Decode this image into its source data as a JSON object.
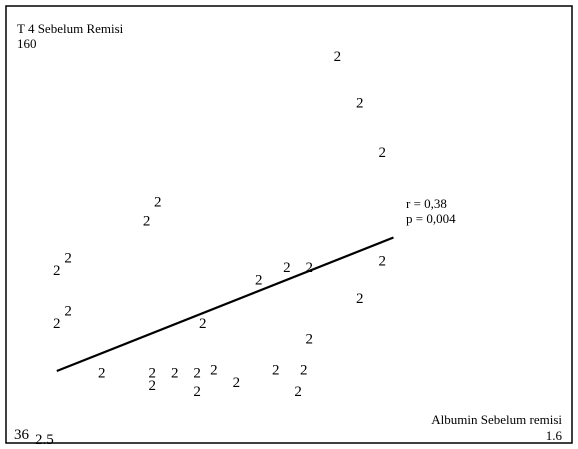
{
  "chart_data": {
    "type": "scatter",
    "ylabel": "T 4 Sebelum Remisi",
    "xlabel": "Albumin Sebelum remisi",
    "xlim": [
      2.5,
      1.6
    ],
    "ylim": [
      36,
      160
    ],
    "corner_labels": {
      "y_max": "160",
      "y_min": "36",
      "x_min": "2.5",
      "x_max": "1.6"
    },
    "marker_symbol": "2",
    "points": [
      {
        "x": 1.97,
        "y": 156
      },
      {
        "x": 1.93,
        "y": 141
      },
      {
        "x": 1.89,
        "y": 125
      },
      {
        "x": 2.29,
        "y": 109
      },
      {
        "x": 2.31,
        "y": 103
      },
      {
        "x": 2.45,
        "y": 91
      },
      {
        "x": 2.47,
        "y": 87
      },
      {
        "x": 1.89,
        "y": 90
      },
      {
        "x": 2.02,
        "y": 88
      },
      {
        "x": 2.06,
        "y": 88
      },
      {
        "x": 2.11,
        "y": 84
      },
      {
        "x": 1.93,
        "y": 78
      },
      {
        "x": 2.45,
        "y": 74
      },
      {
        "x": 2.47,
        "y": 70
      },
      {
        "x": 2.21,
        "y": 70
      },
      {
        "x": 2.02,
        "y": 65
      },
      {
        "x": 2.39,
        "y": 54
      },
      {
        "x": 2.3,
        "y": 54
      },
      {
        "x": 2.26,
        "y": 54
      },
      {
        "x": 2.22,
        "y": 54
      },
      {
        "x": 2.19,
        "y": 55
      },
      {
        "x": 2.3,
        "y": 50
      },
      {
        "x": 2.22,
        "y": 48
      },
      {
        "x": 2.15,
        "y": 51
      },
      {
        "x": 2.08,
        "y": 55
      },
      {
        "x": 2.03,
        "y": 55
      },
      {
        "x": 2.04,
        "y": 48
      }
    ],
    "regression_line": {
      "x": [
        2.47,
        1.87
      ],
      "y": [
        55,
        98
      ]
    },
    "annotations": [
      "r  = 0,38",
      "p = 0,004"
    ]
  }
}
